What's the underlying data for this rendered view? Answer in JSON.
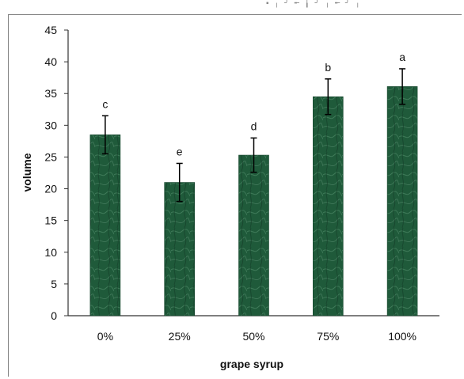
{
  "chart_data": {
    "type": "bar",
    "categories": [
      "0%",
      "25%",
      "50%",
      "75%",
      "100%"
    ],
    "values": [
      28.5,
      21,
      25.3,
      34.5,
      36.1
    ],
    "errors": [
      3,
      3,
      2.7,
      2.8,
      2.8
    ],
    "annotations": [
      "c",
      "e",
      "d",
      "b",
      "a"
    ],
    "title": "",
    "xlabel": "grape syrup",
    "ylabel": "volume",
    "ylim": [
      0,
      45
    ],
    "yticks": [
      "0",
      "5",
      "10",
      "15",
      "20",
      "25",
      "30",
      "35",
      "40",
      "45"
    ],
    "grid": false,
    "legend": "none",
    "colors": {
      "bar": "#1f5a3a",
      "bar_texture_light": "#4f8a69",
      "bar_texture_dark": "#123826",
      "axis": "#333333",
      "error_bar": "#000000"
    }
  }
}
